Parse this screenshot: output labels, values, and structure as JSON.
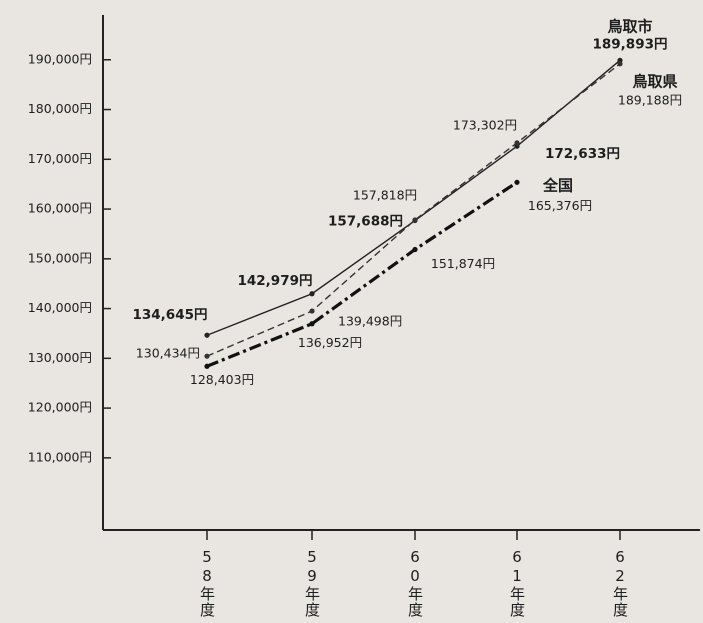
{
  "chart_data": {
    "type": "line",
    "categories": [
      "58年度",
      "59年度",
      "60年度",
      "61年度",
      "62年度"
    ],
    "series": [
      {
        "name": "鳥取市",
        "color": "#222222",
        "line_style": "solid",
        "values": [
          134645,
          142979,
          157688,
          172633,
          189893
        ],
        "value_labels": [
          "134,645円",
          "142,979円",
          "157,688円",
          "172,633円",
          "189,893円"
        ]
      },
      {
        "name": "鳥取県",
        "color": "#333333",
        "line_style": "dashed",
        "values": [
          130434,
          139498,
          157818,
          173302,
          189188
        ],
        "value_labels": [
          "130,434円",
          "139,498円",
          "157,818円",
          "173,302円",
          "189,188円"
        ]
      },
      {
        "name": "全国",
        "color": "#111111",
        "line_style": "dashdot",
        "values": [
          128403,
          136952,
          151874,
          165376,
          null
        ],
        "value_labels": [
          "128,403円",
          "136,952円",
          "151,874円",
          "165,376円",
          null
        ]
      }
    ],
    "ylim": [
      95500,
      199000
    ],
    "yticks": [
      {
        "value": 110000,
        "label": "110,000円"
      },
      {
        "value": 120000,
        "label": "120,000円"
      },
      {
        "value": 130000,
        "label": "130,000円"
      },
      {
        "value": 140000,
        "label": "140,000円"
      },
      {
        "value": 150000,
        "label": "150,000円"
      },
      {
        "value": 160000,
        "label": "160,000円"
      },
      {
        "value": 170000,
        "label": "170,000円"
      },
      {
        "value": 180000,
        "label": "180,000円"
      },
      {
        "value": 190000,
        "label": "190,000円"
      }
    ]
  }
}
